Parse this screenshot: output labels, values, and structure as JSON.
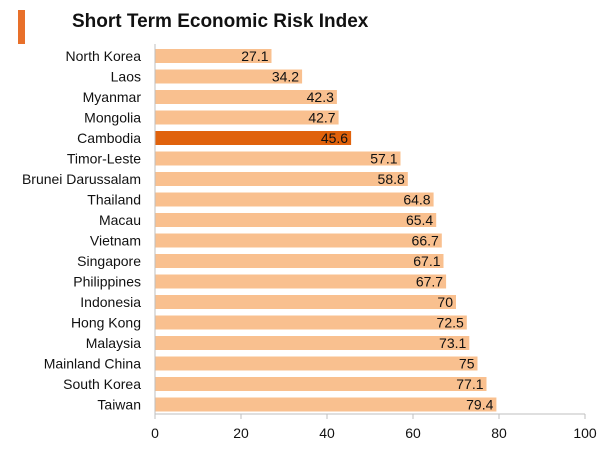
{
  "chart_data": {
    "type": "bar",
    "orientation": "horizontal",
    "title": "Short Term Economic Risk Index",
    "categories": [
      "North Korea",
      "Laos",
      "Myanmar",
      "Mongolia",
      "Cambodia",
      "Timor-Leste",
      "Brunei Darussalam",
      "Thailand",
      "Macau",
      "Vietnam",
      "Singapore",
      "Philippines",
      "Indonesia",
      "Hong Kong",
      "Malaysia",
      "Mainland China",
      "South Korea",
      "Taiwan"
    ],
    "values": [
      27.1,
      34.2,
      42.3,
      42.7,
      45.6,
      57.1,
      58.8,
      64.8,
      65.4,
      66.7,
      67.1,
      67.7,
      70,
      72.5,
      73.1,
      75,
      77.1,
      79.4
    ],
    "value_labels": [
      "27.1",
      "34.2",
      "42.3",
      "42.7",
      "45.6",
      "57.1",
      "58.8",
      "64.8",
      "65.4",
      "66.7",
      "67.1",
      "67.7",
      "70",
      "72.5",
      "73.1",
      "75",
      "77.1",
      "79.4"
    ],
    "highlight_category": "Cambodia",
    "xlim": [
      0,
      100
    ],
    "x_ticks": [
      "0",
      "20",
      "40",
      "60",
      "80",
      "100"
    ],
    "xlabel": "",
    "ylabel": "",
    "grid": false,
    "colors": {
      "bar": "#f9c08f",
      "highlight": "#e0620c",
      "accent": "#e8702a",
      "axis": "#bfbfbf"
    }
  }
}
